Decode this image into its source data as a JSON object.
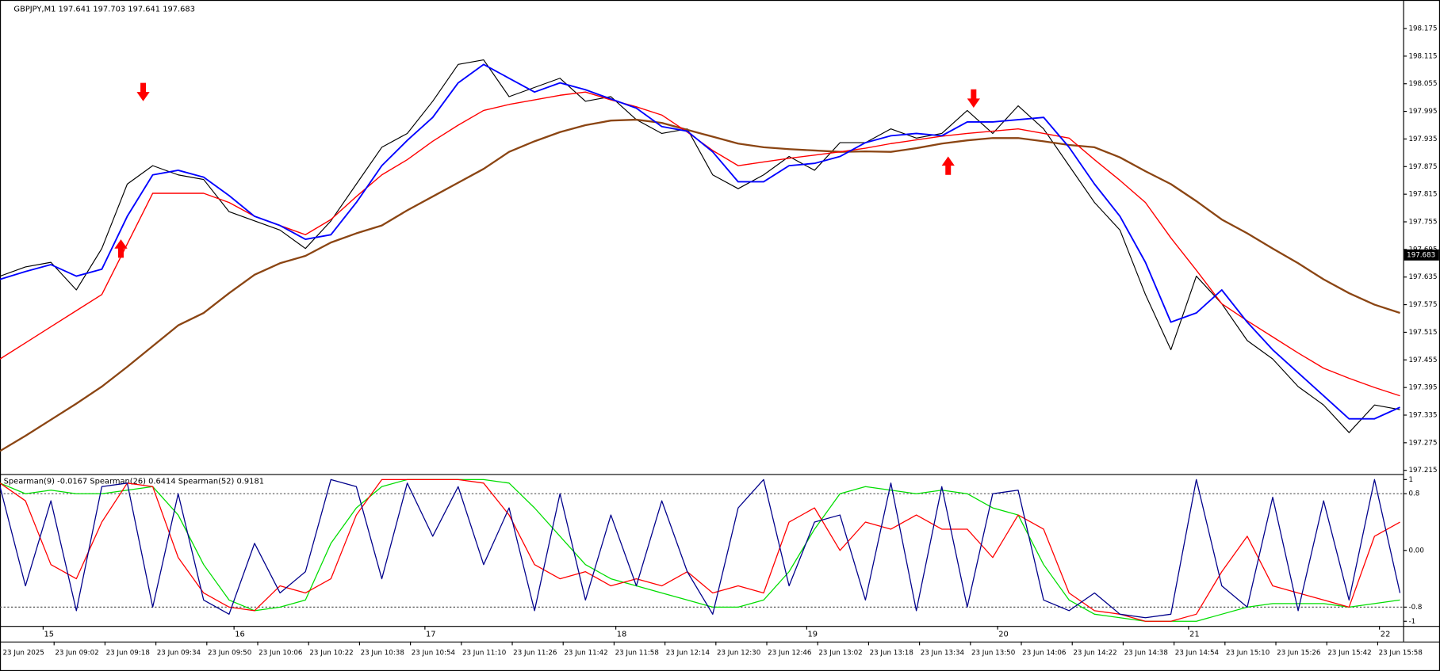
{
  "chart_data": [
    {
      "type": "line",
      "title": "GBPJPY,M1  197.641 197.703 197.641 197.683",
      "x": [
        0,
        8,
        16,
        24,
        32,
        40,
        48,
        56,
        64,
        72,
        80,
        88,
        96,
        104,
        112,
        120,
        128,
        136,
        144,
        152,
        160,
        168,
        176,
        184,
        192,
        200,
        208,
        216,
        224,
        232,
        240,
        248,
        256,
        264,
        272,
        280,
        288,
        296,
        304,
        312,
        320,
        328,
        336,
        344,
        352,
        360,
        368,
        376,
        384,
        392,
        400,
        408,
        416,
        424,
        432,
        440
      ],
      "xlim": [
        0,
        441
      ],
      "xticks": [
        {
          "value": 0,
          "label": "23 Jun 2025"
        },
        {
          "value": 17,
          "label": "23 Jun 09:02"
        },
        {
          "value": 33,
          "label": "23 Jun 09:18"
        },
        {
          "value": 49,
          "label": "23 Jun 09:34"
        },
        {
          "value": 65,
          "label": "23 Jun 09:50"
        },
        {
          "value": 81,
          "label": "23 Jun 10:06"
        },
        {
          "value": 97,
          "label": "23 Jun 10:22"
        },
        {
          "value": 113,
          "label": "23 Jun 10:38"
        },
        {
          "value": 129,
          "label": "23 Jun 10:54"
        },
        {
          "value": 145,
          "label": "23 Jun 11:10"
        },
        {
          "value": 161,
          "label": "23 Jun 11:26"
        },
        {
          "value": 177,
          "label": "23 Jun 11:42"
        },
        {
          "value": 193,
          "label": "23 Jun 11:58"
        },
        {
          "value": 209,
          "label": "23 Jun 12:14"
        },
        {
          "value": 225,
          "label": "23 Jun 12:30"
        },
        {
          "value": 241,
          "label": "23 Jun 12:46"
        },
        {
          "value": 257,
          "label": "23 Jun 13:02"
        },
        {
          "value": 273,
          "label": "23 Jun 13:18"
        },
        {
          "value": 289,
          "label": "23 Jun 13:34"
        },
        {
          "value": 305,
          "label": "23 Jun 13:50"
        },
        {
          "value": 321,
          "label": "23 Jun 14:06"
        },
        {
          "value": 337,
          "label": "23 Jun 14:22"
        },
        {
          "value": 353,
          "label": "23 Jun 14:38"
        },
        {
          "value": 369,
          "label": "23 Jun 14:54"
        },
        {
          "value": 385,
          "label": "23 Jun 15:10"
        },
        {
          "value": 401,
          "label": "23 Jun 15:26"
        },
        {
          "value": 417,
          "label": "23 Jun 15:42"
        },
        {
          "value": 433,
          "label": "23 Jun 15:58"
        }
      ],
      "ylim": [
        197.209,
        198.231
      ],
      "yticks": [
        197.215,
        197.275,
        197.335,
        197.395,
        197.455,
        197.515,
        197.575,
        197.635,
        197.695,
        197.755,
        197.815,
        197.875,
        197.935,
        197.995,
        198.055,
        198.115,
        198.175
      ],
      "grid": false,
      "last_price": 197.683,
      "series": [
        {
          "color": "#000000",
          "values": [
            197.637,
            197.657,
            197.667,
            197.607,
            197.697,
            197.837,
            197.877,
            197.857,
            197.847,
            197.777,
            197.757,
            197.737,
            197.697,
            197.757,
            197.837,
            197.917,
            197.947,
            198.017,
            198.097,
            198.107,
            198.027,
            198.047,
            198.067,
            198.017,
            198.027,
            197.977,
            197.947,
            197.957,
            197.857,
            197.827,
            197.857,
            197.897,
            197.867,
            197.927,
            197.927,
            197.957,
            197.937,
            197.947,
            197.997,
            197.947,
            198.007,
            197.957,
            197.877,
            197.797,
            197.737,
            197.597,
            197.477,
            197.637,
            197.577,
            197.497,
            197.457,
            197.397,
            197.357,
            197.297,
            197.357,
            197.347
          ]
        },
        {
          "color": "#8b4513",
          "values": [
            197.257,
            197.29,
            197.325,
            197.36,
            197.397,
            197.44,
            197.485,
            197.53,
            197.557,
            197.6,
            197.64,
            197.665,
            197.681,
            197.71,
            197.73,
            197.747,
            197.78,
            197.81,
            197.84,
            197.87,
            197.907,
            197.93,
            197.95,
            197.965,
            197.975,
            197.977,
            197.97,
            197.955,
            197.94,
            197.925,
            197.917,
            197.913,
            197.91,
            197.907,
            197.908,
            197.907,
            197.915,
            197.925,
            197.932,
            197.937,
            197.937,
            197.93,
            197.922,
            197.917,
            197.895,
            197.865,
            197.837,
            197.8,
            197.76,
            197.73,
            197.697,
            197.665,
            197.63,
            197.6,
            197.575,
            197.557
          ]
        },
        {
          "color": "#ff0000",
          "values": [
            197.457,
            197.492,
            197.527,
            197.562,
            197.597,
            197.707,
            197.817,
            197.817,
            197.817,
            197.797,
            197.767,
            197.747,
            197.727,
            197.76,
            197.81,
            197.857,
            197.89,
            197.93,
            197.965,
            197.997,
            198.01,
            198.02,
            198.03,
            198.037,
            198.02,
            198.005,
            197.987,
            197.95,
            197.91,
            197.877,
            197.885,
            197.893,
            197.9,
            197.907,
            197.915,
            197.925,
            197.933,
            197.941,
            197.947,
            197.952,
            197.957,
            197.947,
            197.937,
            197.89,
            197.845,
            197.797,
            197.72,
            197.65,
            197.577,
            197.54,
            197.505,
            197.47,
            197.437,
            197.415,
            197.395,
            197.377
          ]
        },
        {
          "color": "#0000ff",
          "values": [
            197.63,
            197.647,
            197.662,
            197.637,
            197.652,
            197.767,
            197.857,
            197.867,
            197.852,
            197.812,
            197.767,
            197.747,
            197.717,
            197.727,
            197.797,
            197.877,
            197.932,
            197.982,
            198.057,
            198.097,
            198.067,
            198.037,
            198.057,
            198.042,
            198.022,
            198.002,
            197.962,
            197.952,
            197.907,
            197.842,
            197.842,
            197.877,
            197.882,
            197.897,
            197.927,
            197.942,
            197.947,
            197.942,
            197.972,
            197.972,
            197.977,
            197.982,
            197.917,
            197.837,
            197.767,
            197.667,
            197.537,
            197.557,
            197.607,
            197.537,
            197.477,
            197.427,
            197.377,
            197.327,
            197.327,
            197.352
          ]
        }
      ],
      "arrow_color": "#ff0000",
      "up_arrows": {
        "x": [
          38,
          298
        ],
        "values": [
          197.717,
          197.897
        ]
      },
      "down_arrows": {
        "x": [
          45,
          306
        ],
        "values": [
          198.017,
          198.003
        ]
      }
    },
    {
      "type": "line",
      "title": "Spearman(9) -0.0167  Spearman(26) 0.6414  Spearman(52) 0.9181",
      "x": [
        0,
        8,
        16,
        24,
        32,
        40,
        48,
        56,
        64,
        72,
        80,
        88,
        96,
        104,
        112,
        120,
        128,
        136,
        144,
        152,
        160,
        168,
        176,
        184,
        192,
        200,
        208,
        216,
        224,
        232,
        240,
        248,
        256,
        264,
        272,
        280,
        288,
        296,
        304,
        312,
        320,
        328,
        336,
        344,
        352,
        360,
        368,
        376,
        384,
        392,
        400,
        408,
        416,
        424,
        432,
        440
      ],
      "xlim": [
        0,
        441
      ],
      "ylim": [
        -1.052,
        1.052
      ],
      "yticks": [
        1,
        0.8,
        {
          "value": 0,
          "label": "0.00"
        },
        -0.8,
        -1
      ],
      "levels": [
        0.8,
        -0.8
      ],
      "series": [
        {
          "color": "#00dd00",
          "values": [
            0.95,
            0.8,
            0.85,
            0.8,
            0.8,
            0.85,
            0.9,
            0.5,
            -0.2,
            -0.7,
            -0.85,
            -0.8,
            -0.7,
            0.1,
            0.6,
            0.9,
            1.0,
            1.0,
            1.0,
            1.0,
            0.95,
            0.6,
            0.2,
            -0.2,
            -0.4,
            -0.5,
            -0.6,
            -0.7,
            -0.8,
            -0.8,
            -0.7,
            -0.3,
            0.3,
            0.8,
            0.9,
            0.85,
            0.8,
            0.85,
            0.8,
            0.6,
            0.5,
            -0.2,
            -0.7,
            -0.9,
            -0.95,
            -1.0,
            -1.0,
            -1.0,
            -0.9,
            -0.8,
            -0.75,
            -0.75,
            -0.75,
            -0.8,
            -0.75,
            -0.7
          ]
        },
        {
          "color": "#ff0000",
          "values": [
            0.95,
            0.7,
            -0.2,
            -0.4,
            0.4,
            0.95,
            0.9,
            -0.1,
            -0.6,
            -0.8,
            -0.85,
            -0.5,
            -0.6,
            -0.4,
            0.5,
            1.0,
            1.0,
            1.0,
            1.0,
            0.95,
            0.5,
            -0.2,
            -0.4,
            -0.3,
            -0.5,
            -0.4,
            -0.5,
            -0.3,
            -0.6,
            -0.5,
            -0.6,
            0.4,
            0.6,
            0.0,
            0.4,
            0.3,
            0.5,
            0.3,
            0.3,
            -0.1,
            0.5,
            0.3,
            -0.6,
            -0.85,
            -0.9,
            -1.0,
            -1.0,
            -0.9,
            -0.3,
            0.2,
            -0.5,
            -0.6,
            -0.7,
            -0.8,
            0.2,
            0.4
          ]
        },
        {
          "color": "#00008b",
          "values": [
            0.9,
            -0.5,
            0.7,
            -0.85,
            0.9,
            0.95,
            -0.8,
            0.8,
            -0.7,
            -0.9,
            0.1,
            -0.6,
            -0.3,
            1.0,
            0.9,
            -0.4,
            0.95,
            0.2,
            0.9,
            -0.2,
            0.6,
            -0.85,
            0.8,
            -0.7,
            0.5,
            -0.5,
            0.7,
            -0.3,
            -0.9,
            0.6,
            1.0,
            -0.5,
            0.4,
            0.5,
            -0.7,
            0.95,
            -0.85,
            0.9,
            -0.8,
            0.8,
            0.85,
            -0.7,
            -0.85,
            -0.6,
            -0.9,
            -0.95,
            -0.9,
            1.0,
            -0.5,
            -0.8,
            0.75,
            -0.85,
            0.7,
            -0.7,
            1.0,
            -0.6
          ]
        }
      ],
      "day_labels": {
        "x": [
          15,
          75,
          135,
          195,
          255,
          315,
          375,
          435
        ],
        "labels": [
          15,
          16,
          17,
          18,
          19,
          20,
          21,
          22
        ]
      }
    }
  ]
}
